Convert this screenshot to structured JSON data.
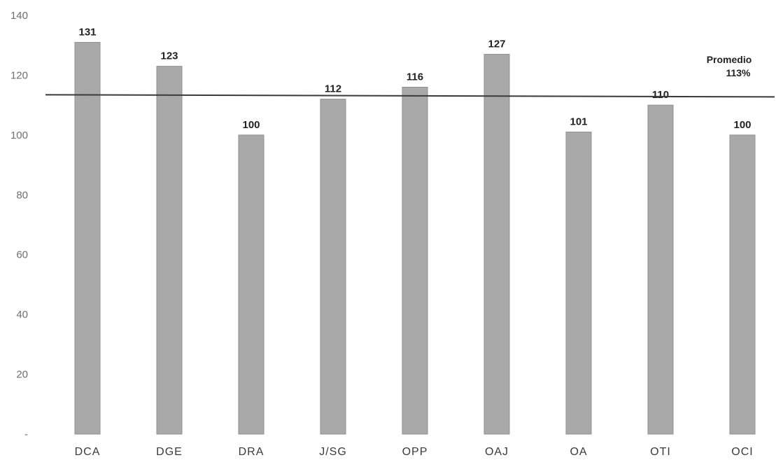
{
  "chart_data": {
    "type": "bar",
    "title": "",
    "xlabel": "",
    "ylabel": "",
    "categories": [
      "DCA",
      "DGE",
      "DRA",
      "J/SG",
      "OPP",
      "OAJ",
      "OA",
      "OTI",
      "OCI"
    ],
    "values": [
      131,
      123,
      100,
      112,
      116,
      127,
      101,
      110,
      100
    ],
    "data_labels": [
      "131",
      "123",
      "100",
      "112",
      "116",
      "127",
      "101",
      "110",
      "100"
    ],
    "ylim": [
      0,
      140
    ],
    "yticks": [
      0,
      20,
      40,
      60,
      80,
      100,
      120,
      140
    ],
    "ytick_labels": [
      "-",
      "20",
      "40",
      "60",
      "80",
      "100",
      "120",
      "140"
    ],
    "grid": false,
    "legend": "none",
    "reference_line": {
      "value": 113,
      "label_line1": "Promedio",
      "label_line2": "113%"
    },
    "colors": {
      "bar": "#a9a9a9",
      "bar_edge": "#8f8f8f",
      "line": "#3a3a3a"
    }
  }
}
